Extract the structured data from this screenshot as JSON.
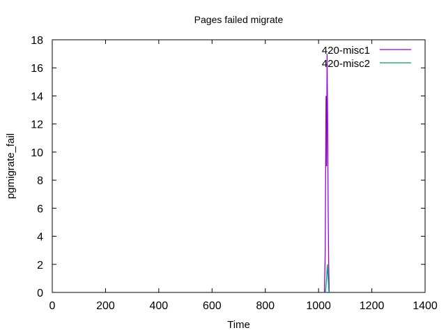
{
  "chart_data": {
    "type": "line",
    "title": "Pages failed migrate",
    "xlabel": "Time",
    "ylabel": "pgmigrate_fail",
    "xlim": [
      0,
      1400
    ],
    "ylim": [
      0,
      18
    ],
    "xticks": [
      0,
      200,
      400,
      600,
      800,
      1000,
      1200,
      1400
    ],
    "yticks": [
      0,
      2,
      4,
      6,
      8,
      10,
      12,
      14,
      16,
      18
    ],
    "grid": false,
    "legend_position": "top-right",
    "series": [
      {
        "name": "420-misc1",
        "color": "#9400d3",
        "x": [
          1022,
          1025,
          1028,
          1030,
          1032,
          1034,
          1036,
          1038,
          1040
        ],
        "y": [
          0,
          3,
          14,
          9,
          17,
          12,
          6,
          2,
          0
        ]
      },
      {
        "name": "420-misc2",
        "color": "#009e73",
        "x": [
          1026,
          1030,
          1033,
          1036,
          1039
        ],
        "y": [
          0,
          1,
          2,
          1,
          0
        ]
      }
    ]
  }
}
